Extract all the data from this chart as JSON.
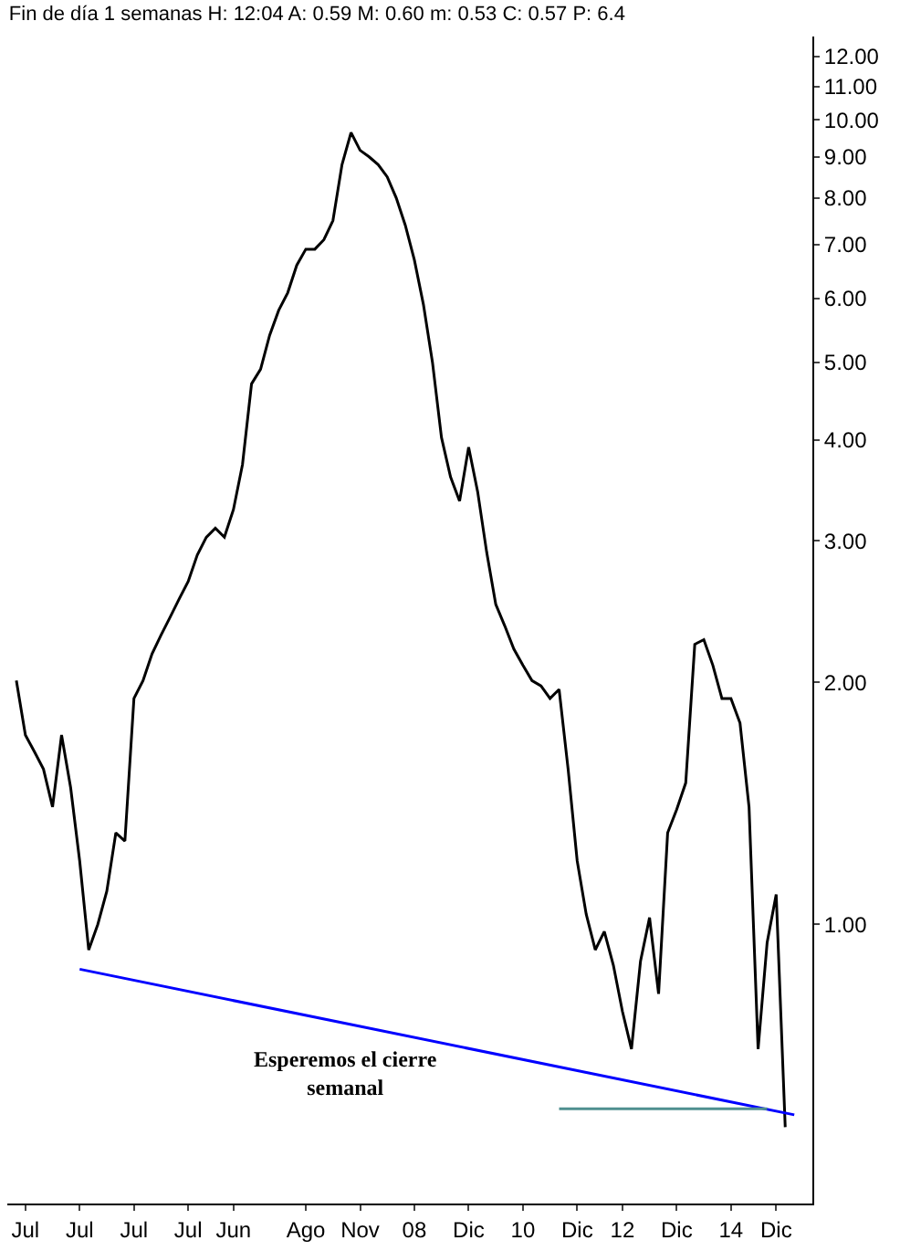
{
  "chart_data": {
    "type": "line",
    "title": "Fin de día 1 semanas H: 12:04 A: 0.59 M: 0.60 m: 0.53 C: 0.57 P: 6.4",
    "log": "y",
    "marker": "none",
    "categories": [
      null,
      null,
      "Jul",
      null,
      null,
      null,
      null,
      null,
      "Jul",
      null,
      null,
      null,
      null,
      null,
      "Jul",
      null,
      null,
      null,
      null,
      null,
      "Jul",
      null,
      null,
      null,
      null,
      "Jun",
      null,
      null,
      null,
      null,
      null,
      null,
      null,
      "Ago",
      null,
      null,
      null,
      null,
      null,
      "Nov",
      null,
      null,
      null,
      null,
      null,
      "08",
      null,
      null,
      null,
      null,
      null,
      "Dic",
      null,
      null,
      null,
      null,
      null,
      "10",
      null,
      null,
      null,
      null,
      null,
      "Dic",
      null,
      null,
      null,
      null,
      "12",
      null,
      null,
      null,
      null,
      null,
      "Dic",
      null,
      null,
      null,
      null,
      null,
      "14",
      null,
      null,
      null,
      null,
      "Dic",
      null,
      null,
      null,
      null
    ],
    "ylim": [
      0.45,
      12.7
    ],
    "yticks": [
      {
        "value": 1,
        "label": "1.00"
      },
      {
        "value": 2,
        "label": "2.00"
      },
      {
        "value": 3,
        "label": "3.00"
      },
      {
        "value": 4,
        "label": "4.00"
      },
      {
        "value": 5,
        "label": "5.00"
      },
      {
        "value": 6,
        "label": "6.00"
      },
      {
        "value": 7,
        "label": "7.00"
      },
      {
        "value": 8,
        "label": "8.00"
      },
      {
        "value": 9,
        "label": "9.00"
      },
      {
        "value": 10,
        "label": "10.00"
      },
      {
        "value": 11,
        "label": "11.00"
      },
      {
        "value": 12,
        "label": "12.00"
      }
    ],
    "series": [
      {
        "color": "#000000",
        "values": [
          null,
          2.01,
          1.72,
          1.64,
          1.56,
          1.4,
          1.72,
          1.48,
          1.2,
          0.93,
          1.0,
          1.1,
          1.3,
          1.27,
          1.91,
          2.01,
          2.17,
          2.29,
          2.41,
          2.54,
          2.67,
          2.88,
          3.03,
          3.11,
          3.03,
          3.28,
          3.73,
          4.7,
          4.9,
          5.4,
          5.8,
          6.1,
          6.6,
          6.91,
          6.91,
          7.1,
          7.5,
          8.8,
          9.65,
          9.17,
          9.0,
          8.8,
          8.5,
          8.0,
          7.4,
          6.7,
          5.9,
          5.0,
          4.03,
          3.6,
          3.36,
          3.92,
          3.45,
          2.9,
          2.5,
          2.35,
          2.2,
          2.1,
          2.01,
          1.98,
          1.91,
          1.96,
          1.56,
          1.2,
          1.03,
          0.93,
          0.98,
          0.89,
          0.78,
          0.7,
          0.9,
          1.02,
          0.82,
          1.3,
          1.39,
          1.5,
          2.23,
          2.26,
          2.1,
          1.91,
          1.91,
          1.78,
          1.4,
          0.7,
          0.95,
          1.09,
          0.56,
          null,
          null,
          null
        ]
      },
      {
        "color": "#0000ff",
        "values": [
          null,
          null,
          null,
          null,
          null,
          null,
          null,
          null,
          0.88,
          null,
          null,
          null,
          null,
          null,
          null,
          null,
          null,
          null,
          null,
          null,
          null,
          null,
          null,
          null,
          null,
          null,
          null,
          null,
          null,
          null,
          null,
          null,
          null,
          null,
          null,
          null,
          null,
          null,
          null,
          null,
          null,
          null,
          null,
          null,
          null,
          null,
          null,
          null,
          null,
          null,
          null,
          null,
          null,
          null,
          null,
          null,
          null,
          null,
          null,
          null,
          null,
          null,
          null,
          null,
          null,
          null,
          null,
          null,
          null,
          null,
          null,
          null,
          null,
          null,
          null,
          null,
          null,
          null,
          null,
          null,
          null,
          null,
          null,
          null,
          null,
          null,
          null,
          0.58,
          null,
          null
        ]
      },
      {
        "color": "#4f8f8f",
        "values": [
          null,
          null,
          null,
          null,
          null,
          null,
          null,
          null,
          null,
          null,
          null,
          null,
          null,
          null,
          null,
          null,
          null,
          null,
          null,
          null,
          null,
          null,
          null,
          null,
          null,
          null,
          null,
          null,
          null,
          null,
          null,
          null,
          null,
          null,
          null,
          null,
          null,
          null,
          null,
          null,
          null,
          null,
          null,
          null,
          null,
          null,
          null,
          null,
          null,
          null,
          null,
          null,
          null,
          null,
          null,
          null,
          null,
          null,
          null,
          null,
          null,
          0.59,
          null,
          null,
          null,
          null,
          null,
          null,
          null,
          null,
          null,
          null,
          null,
          null,
          null,
          null,
          null,
          null,
          null,
          null,
          null,
          null,
          null,
          null,
          0.59,
          null,
          null,
          null,
          null,
          null
        ]
      }
    ],
    "annotations": [
      "Esperemos el cierre\nsemanal"
    ]
  }
}
